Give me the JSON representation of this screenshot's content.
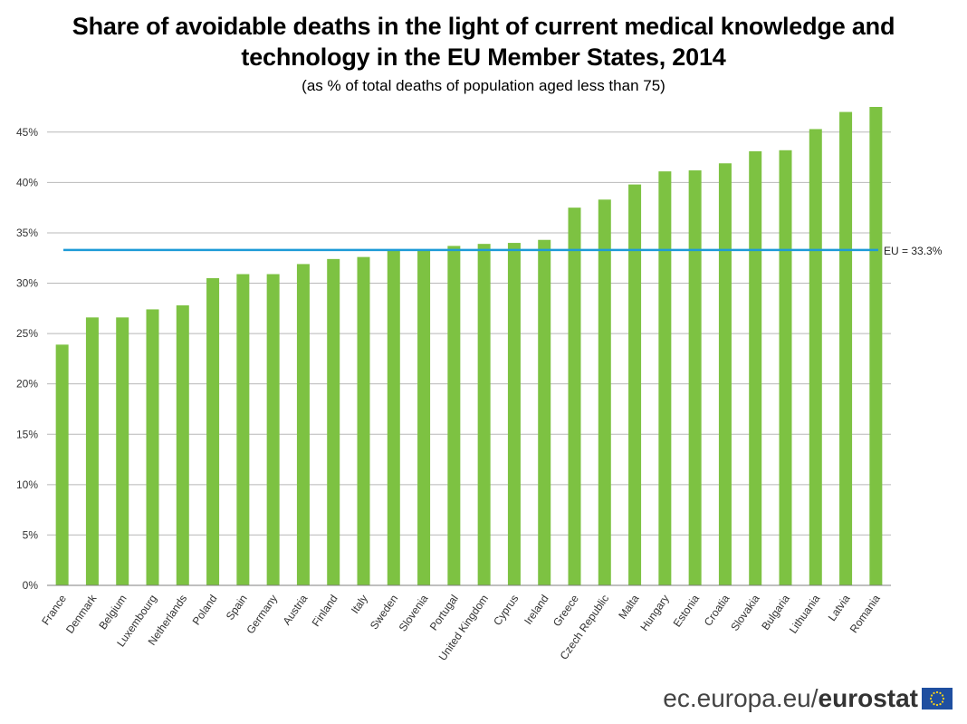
{
  "header": {
    "title_line1": "Share of avoidable deaths in the light of current medical knowledge and",
    "title_line2": "technology in the EU Member States, 2014",
    "subtitle": "(as % of total deaths of population aged less than 75)"
  },
  "footer": {
    "url": "ec.europa.eu/",
    "brand": "eurostat",
    "flag_icon": "eu-flag-icon"
  },
  "colors": {
    "bar": "#7DC242",
    "reference_line": "#1E9BD7",
    "grid": "#B8B8B8",
    "axis": "#7F7F7F"
  },
  "chart_data": {
    "type": "bar",
    "title": "Share of avoidable deaths in the light of current medical knowledge and technology in the EU Member States, 2014",
    "subtitle": "(as % of total deaths of population aged less than 75)",
    "categories": [
      "France",
      "Denmark",
      "Belgium",
      "Luxembourg",
      "Netherlands",
      "Poland",
      "Spain",
      "Germany",
      "Austria",
      "Finland",
      "Italy",
      "Sweden",
      "Slovenia",
      "Portugal",
      "United Kingdom",
      "Cyprus",
      "Ireland",
      "Greece",
      "Czech Republic",
      "Malta",
      "Hungary",
      "Estonia",
      "Croatia",
      "Slovakia",
      "Bulgaria",
      "Lithuania",
      "Latvia",
      "Romania"
    ],
    "values": [
      23.9,
      26.6,
      26.6,
      27.4,
      27.8,
      30.5,
      30.9,
      30.9,
      31.9,
      32.4,
      32.6,
      33.2,
      33.3,
      33.7,
      33.9,
      34.0,
      34.3,
      37.5,
      38.3,
      39.8,
      41.1,
      41.2,
      41.9,
      43.1,
      43.2,
      45.3,
      47.0,
      47.5
    ],
    "ylim": [
      0,
      47.5
    ],
    "yticks": [
      0,
      5,
      10,
      15,
      20,
      25,
      30,
      35,
      40,
      45
    ],
    "ytick_labels": [
      "0%",
      "5%",
      "10%",
      "15%",
      "20%",
      "25%",
      "30%",
      "35%",
      "40%",
      "45%"
    ],
    "grid": true,
    "reference_line": {
      "value": 33.3,
      "label": "EU = 33.3%"
    }
  }
}
